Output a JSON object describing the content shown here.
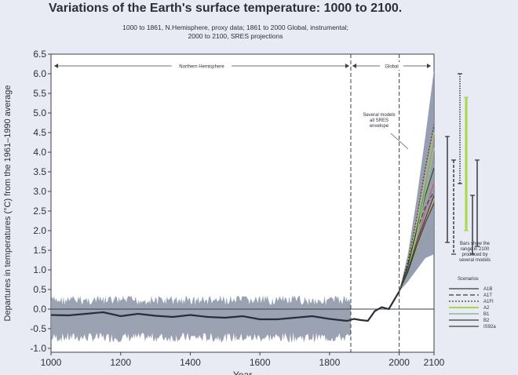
{
  "chart_data": {
    "type": "line",
    "title": "Variations of the Earth's surface temperature: 1000 to 2100.",
    "subtitle_lines": [
      "1000 to 1861, N.Hemisphere, proxy data; 1861 to 2000 Global, instrumental;",
      "2000 to 2100, SRES projections"
    ],
    "ylabel": "Departures in temperatures (°C) from the 1961–1990 average",
    "xlabel": "Year",
    "xlim": [
      1000,
      2100
    ],
    "ylim": [
      -1.1,
      6.5
    ],
    "xticks": [
      "1000",
      "1200",
      "1400",
      "1600",
      "1800",
      "2000",
      "2100"
    ],
    "yticks": [
      "6.5",
      "6.0",
      "5.5",
      "5.0",
      "4.5",
      "4.0",
      "3.5",
      "3.0",
      "2.5",
      "2.0",
      "1.5",
      "1.0",
      "0.5",
      "0.0",
      "-0.5",
      "-1.0"
    ],
    "region_labels": [
      "Northern Hemisphere",
      "Global"
    ],
    "annotation_envelope": [
      "Several models",
      "all SRES",
      "envelope"
    ],
    "annotation_bars": [
      "Bars show the",
      "range in 2100",
      "produced by",
      "several models"
    ],
    "legend_title": "Scenarios",
    "history_series": {
      "x": [
        1000,
        1050,
        1100,
        1150,
        1200,
        1250,
        1300,
        1350,
        1400,
        1450,
        1500,
        1550,
        1600,
        1650,
        1700,
        1750,
        1800,
        1850,
        1870,
        1890,
        1910,
        1930,
        1950,
        1970,
        1990,
        2000
      ],
      "y": [
        -0.15,
        -0.16,
        -0.12,
        -0.08,
        -0.18,
        -0.12,
        -0.17,
        -0.2,
        -0.15,
        -0.2,
        -0.22,
        -0.18,
        -0.26,
        -0.26,
        -0.22,
        -0.18,
        -0.25,
        -0.3,
        -0.25,
        -0.28,
        -0.3,
        -0.05,
        0.05,
        0.0,
        0.3,
        0.45
      ]
    },
    "history_uncertainty": {
      "upper": 0.35,
      "lower": -0.85
    },
    "projection_x": [
      2000,
      2025,
      2050,
      2075,
      2100
    ],
    "envelope_upper": [
      0.45,
      1.4,
      2.8,
      4.4,
      6.1
    ],
    "envelope_lower": [
      0.45,
      0.7,
      1.0,
      1.3,
      1.4
    ],
    "series": [
      {
        "name": "A1B",
        "values": [
          0.45,
          1.1,
          2.0,
          2.9,
          3.6
        ],
        "color": "#3a3a3a",
        "dash": ""
      },
      {
        "name": "A1T",
        "values": [
          0.45,
          1.15,
          2.0,
          2.6,
          3.0
        ],
        "color": "#3a3a3a",
        "dash": "6,3"
      },
      {
        "name": "A1FI",
        "values": [
          0.45,
          1.2,
          2.3,
          3.6,
          4.7
        ],
        "color": "#3a3a3a",
        "dash": "2,2"
      },
      {
        "name": "A2",
        "values": [
          0.45,
          1.0,
          1.9,
          3.0,
          4.1
        ],
        "color": "#a8d84a",
        "dash": ""
      },
      {
        "name": "B1",
        "values": [
          0.45,
          0.9,
          1.5,
          1.8,
          2.1
        ],
        "color": "#7fa98e",
        "dash": ""
      },
      {
        "name": "B2",
        "values": [
          0.45,
          0.95,
          1.6,
          2.2,
          2.7
        ],
        "color": "#3a3a3a",
        "dash": ""
      },
      {
        "name": "IS92a",
        "values": [
          0.45,
          1.0,
          1.7,
          2.3,
          2.9
        ],
        "color": "#3a3a3a",
        "dash": ""
      }
    ],
    "range_bars": [
      {
        "name": "A1B",
        "low": 1.7,
        "high": 4.4,
        "style": "solid",
        "color": "#2b2f3a"
      },
      {
        "name": "A1T",
        "low": 1.4,
        "high": 3.8,
        "style": "dash",
        "color": "#2b2f3a"
      },
      {
        "name": "A1FI",
        "low": 3.2,
        "high": 6.0,
        "style": "dot",
        "color": "#2b2f3a"
      },
      {
        "name": "A2",
        "low": 2.0,
        "high": 5.4,
        "style": "solid",
        "color": "#a8d84a"
      },
      {
        "name": "B1",
        "low": 1.4,
        "high": 2.9,
        "style": "solid",
        "color": "#2b2f3a"
      },
      {
        "name": "B2",
        "low": 1.6,
        "high": 3.8,
        "style": "solid",
        "color": "#2b2f3a"
      }
    ],
    "vlines": [
      1861,
      2000
    ]
  }
}
